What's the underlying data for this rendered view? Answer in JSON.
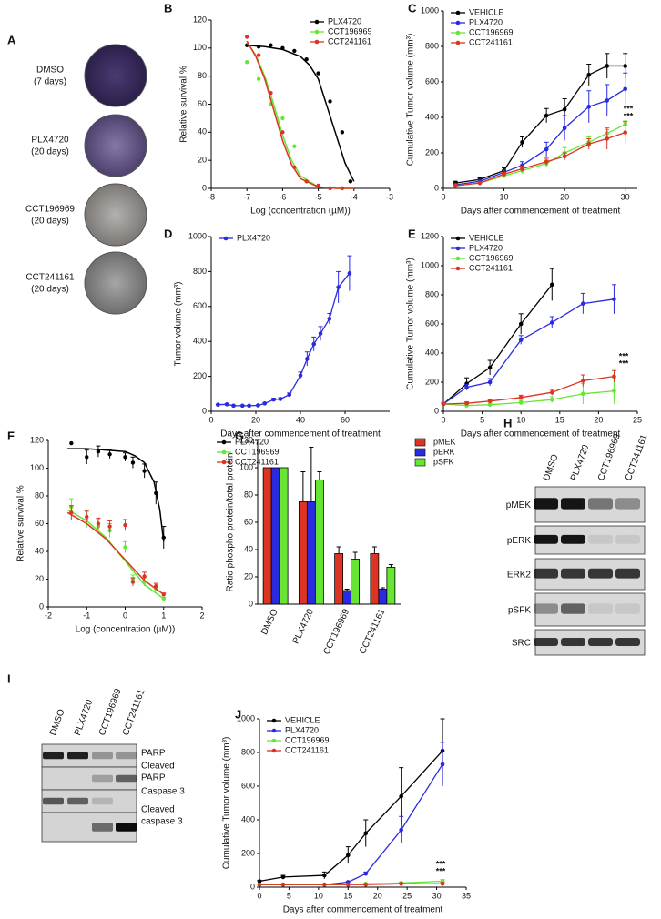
{
  "panel_a": {
    "letter": "A",
    "items": [
      {
        "lines": [
          "DMSO",
          "(7 days)"
        ]
      },
      {
        "lines": [
          "PLX4720",
          "(20 days)"
        ]
      },
      {
        "lines": [
          "CCT196969",
          "(20 days)"
        ]
      },
      {
        "lines": [
          "CCT241161",
          "(20 days)"
        ]
      }
    ]
  },
  "panel_h": {
    "letter": "H",
    "lanes": [
      "DMSO",
      "PLX4720",
      "CCT196969",
      "CCT241161"
    ],
    "rows": [
      "pMEK",
      "pERK",
      "ERK2",
      "pSFK",
      "SRC"
    ]
  },
  "panel_i": {
    "letter": "I",
    "lanes": [
      "DMSO",
      "PLX4720",
      "CCT196969",
      "CCT241161"
    ],
    "rows": [
      [
        "PARP"
      ],
      [
        "Cleaved",
        "PARP"
      ],
      [
        "Caspase 3"
      ],
      [
        "Cleaved",
        "caspase 3"
      ]
    ]
  },
  "chart_data": [
    {
      "type": "scatter",
      "panel": "B",
      "ylabel": "Relative survival %",
      "xlabel": "Log (concentration (µM))",
      "xlim": [
        -8,
        -3
      ],
      "xticks": [
        -8,
        -7,
        -6,
        -5,
        -4,
        -3
      ],
      "ylim": [
        0,
        120
      ],
      "yticks": [
        0,
        20,
        40,
        60,
        80,
        100,
        120
      ],
      "legend": "upper right",
      "series": [
        {
          "name": "PLX4720",
          "color": "#000000",
          "x": [
            -7,
            -6.67,
            -6.33,
            -6,
            -5.67,
            -5.33,
            -5,
            -4.67,
            -4.33,
            -4.1
          ],
          "values": [
            102,
            101,
            102,
            100,
            98,
            92,
            82,
            62,
            40,
            5
          ],
          "fit": {
            "x": [
              -7,
              -6.5,
              -6,
              -5.5,
              -5.25,
              -5,
              -4.75,
              -4.5,
              -4.25,
              -4
            ],
            "values": [
              102,
              101,
              99,
              94,
              88,
              78,
              58,
              38,
              18,
              5
            ]
          }
        },
        {
          "name": "CCT196969",
          "color": "#66e633",
          "x": [
            -7,
            -6.67,
            -6.33,
            -6,
            -5.67,
            -5.33,
            -5,
            -4.67,
            -4.33
          ],
          "values": [
            90,
            78,
            60,
            50,
            30,
            5,
            2,
            0,
            0
          ],
          "fit": {
            "x": [
              -7,
              -6.75,
              -6.5,
              -6.25,
              -6,
              -5.75,
              -5.5,
              -5,
              -4.5,
              -4
            ],
            "values": [
              104,
              95,
              80,
              60,
              38,
              20,
              9,
              1,
              0,
              0
            ]
          }
        },
        {
          "name": "CCT241161",
          "color": "#dd3322",
          "x": [
            -7,
            -6.67,
            -6.33,
            -6,
            -5.67,
            -5.33,
            -5,
            -4.67,
            -4.33
          ],
          "values": [
            108,
            95,
            68,
            40,
            15,
            5,
            2,
            0,
            0
          ],
          "fit": {
            "x": [
              -7,
              -6.75,
              -6.5,
              -6.25,
              -6,
              -5.75,
              -5.5,
              -5,
              -4.5,
              -4
            ],
            "values": [
              105,
              94,
              78,
              56,
              34,
              17,
              7,
              1,
              0,
              0
            ]
          }
        }
      ]
    },
    {
      "type": "line",
      "panel": "C",
      "ylabel": "Cumulative Tumor volume (mm³)",
      "xlabel": "Days after commencement of treatment",
      "xlim": [
        0,
        32
      ],
      "xticks": [
        0,
        10,
        20,
        30
      ],
      "ylim": [
        0,
        1000
      ],
      "yticks": [
        0,
        200,
        400,
        600,
        800,
        1000
      ],
      "legend": "upper left",
      "annotation": [
        "***",
        "***"
      ],
      "series": [
        {
          "name": "VEHICLE",
          "color": "#000000",
          "x": [
            2,
            6,
            10,
            13,
            17,
            20,
            24,
            27,
            30
          ],
          "values": [
            30,
            50,
            100,
            260,
            410,
            445,
            640,
            690,
            690
          ],
          "errors": [
            10,
            10,
            15,
            30,
            40,
            60,
            60,
            70,
            70
          ]
        },
        {
          "name": "PLX4720",
          "color": "#2a2ae0",
          "x": [
            2,
            6,
            10,
            13,
            17,
            20,
            24,
            27,
            30
          ],
          "values": [
            20,
            40,
            90,
            130,
            220,
            340,
            460,
            495,
            560
          ],
          "errors": [
            5,
            10,
            15,
            20,
            40,
            70,
            90,
            90,
            90
          ]
        },
        {
          "name": "CCT196969",
          "color": "#66e633",
          "x": [
            2,
            6,
            10,
            13,
            17,
            20,
            24,
            27,
            30
          ],
          "values": [
            15,
            30,
            70,
            100,
            140,
            200,
            260,
            310,
            360
          ],
          "errors": [
            5,
            5,
            10,
            15,
            20,
            30,
            30,
            20,
            20
          ]
        },
        {
          "name": "CCT241161",
          "color": "#dd3322",
          "x": [
            2,
            6,
            10,
            13,
            17,
            20,
            24,
            27,
            30
          ],
          "values": [
            15,
            30,
            80,
            110,
            150,
            180,
            250,
            280,
            315
          ],
          "errors": [
            5,
            8,
            10,
            15,
            20,
            20,
            30,
            60,
            60
          ]
        }
      ]
    },
    {
      "type": "line",
      "panel": "D",
      "ylabel": "Tumor volume (mm³)",
      "xlabel": "Days after commencement of treatment",
      "xlim": [
        0,
        80
      ],
      "xticks": [
        0,
        20,
        40,
        60
      ],
      "ylim": [
        0,
        1000
      ],
      "yticks": [
        0,
        200,
        400,
        600,
        800,
        1000
      ],
      "legend": "upper left",
      "series": [
        {
          "name": "PLX4720",
          "color": "#2a2ae0",
          "x": [
            3,
            7,
            10,
            14,
            17,
            21,
            24,
            28,
            31,
            35,
            40,
            43,
            46,
            49,
            53,
            57,
            62
          ],
          "values": [
            38,
            40,
            32,
            32,
            32,
            34,
            45,
            67,
            70,
            95,
            205,
            300,
            385,
            445,
            530,
            710,
            790
          ],
          "errors": [
            3,
            3,
            3,
            3,
            3,
            3,
            5,
            8,
            8,
            10,
            20,
            40,
            40,
            40,
            30,
            90,
            100
          ]
        }
      ]
    },
    {
      "type": "line",
      "panel": "E",
      "ylabel": "Cumulative Tumor volume (mm³)",
      "xlabel": "Days after commencement of treatment",
      "xlim": [
        0,
        25
      ],
      "xticks": [
        0,
        5,
        10,
        15,
        20,
        25
      ],
      "ylim": [
        0,
        1200
      ],
      "yticks": [
        0,
        200,
        400,
        600,
        800,
        1000,
        1200
      ],
      "legend": "upper left",
      "annotation": [
        "***",
        "***"
      ],
      "series": [
        {
          "name": "VEHICLE",
          "color": "#000000",
          "x": [
            0,
            3,
            6,
            10,
            14
          ],
          "values": [
            50,
            190,
            300,
            600,
            870
          ],
          "errors": [
            10,
            40,
            50,
            70,
            110
          ]
        },
        {
          "name": "PLX4720",
          "color": "#2a2ae0",
          "x": [
            0,
            3,
            6,
            10,
            14,
            18,
            22
          ],
          "values": [
            50,
            165,
            200,
            490,
            610,
            740,
            770
          ],
          "errors": [
            10,
            20,
            25,
            30,
            40,
            70,
            100
          ]
        },
        {
          "name": "CCT196969",
          "color": "#66e633",
          "x": [
            0,
            3,
            6,
            10,
            14,
            18,
            22
          ],
          "values": [
            50,
            40,
            45,
            60,
            80,
            120,
            140
          ],
          "errors": [
            5,
            10,
            10,
            15,
            20,
            70,
            90
          ]
        },
        {
          "name": "CCT241161",
          "color": "#dd3322",
          "x": [
            0,
            3,
            6,
            10,
            14,
            18,
            22
          ],
          "values": [
            50,
            55,
            70,
            95,
            130,
            210,
            240
          ],
          "errors": [
            5,
            10,
            10,
            15,
            20,
            40,
            40
          ]
        }
      ]
    },
    {
      "type": "scatter",
      "panel": "F",
      "ylabel": "Relative survival %",
      "xlabel": "Log (concentration (µM))",
      "xlim": [
        -2,
        2
      ],
      "xticks": [
        -2,
        -1,
        0,
        1,
        2
      ],
      "ylim": [
        0,
        120
      ],
      "yticks": [
        0,
        20,
        40,
        60,
        80,
        100,
        120
      ],
      "legend": "right",
      "series": [
        {
          "name": "PLX4720",
          "color": "#000000",
          "x": [
            -1.4,
            -1,
            -0.7,
            -0.4,
            0,
            0.2,
            0.5,
            0.8,
            1
          ],
          "values": [
            118,
            108,
            112,
            110,
            108,
            104,
            98,
            82,
            50
          ],
          "errors": [
            0,
            5,
            4,
            3,
            3,
            4,
            5,
            8,
            8
          ],
          "fit": {
            "x": [
              -1.5,
              -1,
              -0.5,
              0,
              0.25,
              0.5,
              0.75,
              0.9,
              1
            ],
            "values": [
              114,
              114,
              113,
              112,
              109,
              104,
              90,
              70,
              47
            ]
          }
        },
        {
          "name": "CCT196969",
          "color": "#66e633",
          "x": [
            -1.4,
            -1,
            -0.7,
            -0.4,
            0,
            0.2,
            0.5,
            0.8,
            1
          ],
          "values": [
            72,
            63,
            58,
            55,
            43,
            20,
            18,
            13,
            6
          ],
          "errors": [
            6,
            6,
            5,
            5,
            4,
            3,
            3,
            2,
            1
          ],
          "fit": {
            "x": [
              -1.5,
              -1,
              -0.5,
              0,
              0.5,
              1
            ],
            "values": [
              70,
              62,
              50,
              33,
              16,
              6
            ]
          }
        },
        {
          "name": "CCT241161",
          "color": "#dd3322",
          "x": [
            -1.4,
            -1,
            -0.7,
            -0.4,
            0,
            0.2,
            0.5,
            0.8,
            1
          ],
          "values": [
            68,
            65,
            60,
            58,
            59,
            18,
            22,
            15,
            9
          ],
          "errors": [
            5,
            4,
            4,
            4,
            4,
            3,
            3,
            2,
            1
          ],
          "fit": {
            "x": [
              -1.5,
              -1,
              -0.5,
              0,
              0.5,
              1
            ],
            "values": [
              68,
              60,
              49,
              34,
              19,
              9
            ]
          }
        }
      ]
    },
    {
      "type": "bar",
      "panel": "G",
      "ylabel": "Ratio phospho protein/total protein",
      "categories": [
        "DMSO",
        "PLX4720",
        "CCT196969",
        "CCT241161"
      ],
      "ylim": [
        0,
        120
      ],
      "yticks": [
        0,
        20,
        40,
        60,
        80,
        100,
        120
      ],
      "legend": "right",
      "series": [
        {
          "name": "pMEK",
          "color": "#dd3322",
          "values": [
            100,
            75,
            37,
            37
          ],
          "errors": [
            0,
            22,
            5,
            5
          ]
        },
        {
          "name": "pERK",
          "color": "#2a2ae0",
          "values": [
            100,
            75,
            10,
            11
          ],
          "errors": [
            0,
            40,
            1,
            1
          ]
        },
        {
          "name": "pSFK",
          "color": "#66e633",
          "values": [
            100,
            91,
            33,
            27
          ],
          "errors": [
            0,
            6,
            5,
            2
          ]
        }
      ]
    },
    {
      "type": "line",
      "panel": "J",
      "ylabel": "Cumulative Tumor volume (mm³)",
      "xlabel": "Days after commencement of treatment",
      "xlim": [
        0,
        35
      ],
      "xticks": [
        0,
        5,
        10,
        15,
        20,
        25,
        30,
        35
      ],
      "ylim": [
        0,
        1000
      ],
      "yticks": [
        0,
        200,
        400,
        600,
        800,
        1000
      ],
      "legend": "upper left",
      "annotation": [
        "***",
        "***"
      ],
      "series": [
        {
          "name": "VEHICLE",
          "color": "#000000",
          "x": [
            0,
            4,
            11,
            15,
            18,
            24,
            31
          ],
          "values": [
            35,
            60,
            70,
            190,
            320,
            540,
            810
          ],
          "errors": [
            5,
            10,
            20,
            50,
            80,
            170,
            190
          ]
        },
        {
          "name": "PLX4720",
          "color": "#2a2ae0",
          "x": [
            0,
            4,
            11,
            15,
            18,
            24,
            31
          ],
          "values": [
            15,
            15,
            15,
            30,
            80,
            340,
            730
          ],
          "errors": [
            3,
            3,
            3,
            5,
            10,
            80,
            130
          ]
        },
        {
          "name": "CCT196969",
          "color": "#66e633",
          "x": [
            0,
            4,
            11,
            15,
            18,
            24,
            31
          ],
          "values": [
            15,
            15,
            15,
            15,
            20,
            25,
            35
          ],
          "errors": [
            3,
            3,
            3,
            3,
            3,
            5,
            10
          ]
        },
        {
          "name": "CCT241161",
          "color": "#dd3322",
          "x": [
            0,
            4,
            11,
            15,
            18,
            24,
            31
          ],
          "values": [
            15,
            15,
            15,
            15,
            15,
            20,
            20
          ],
          "errors": [
            3,
            3,
            3,
            3,
            3,
            5,
            8
          ]
        }
      ]
    }
  ]
}
